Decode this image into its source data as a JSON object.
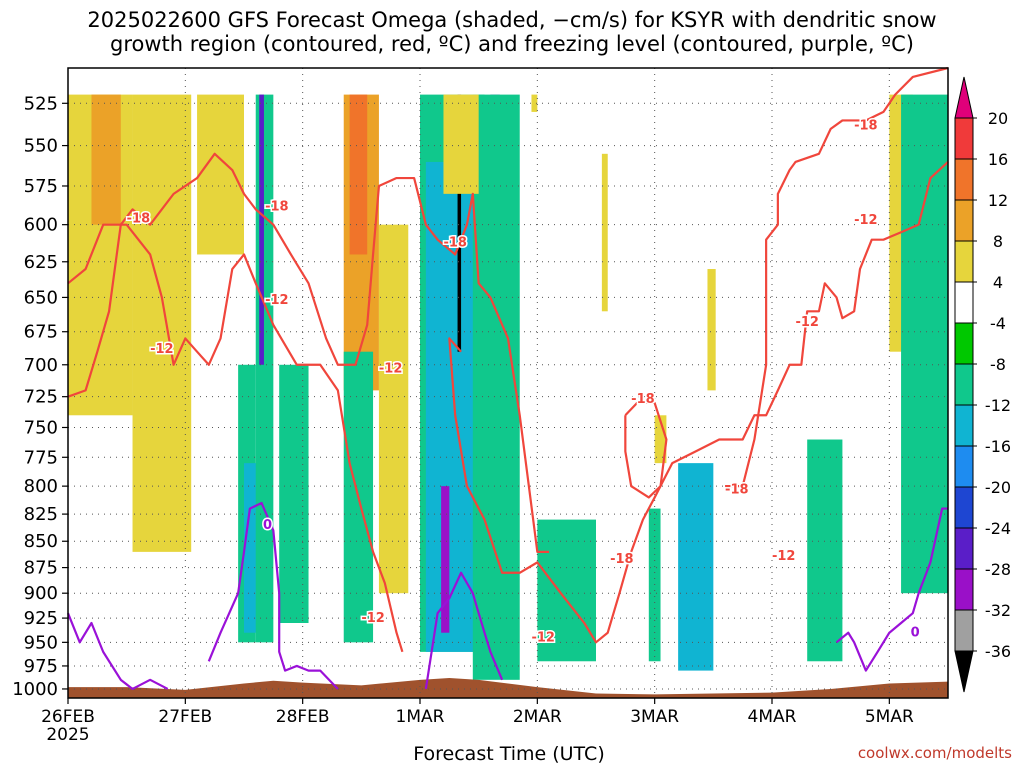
{
  "header": {
    "title_line1": "2025022600 GFS Forecast Omega (shaded, −cm/s) for KSYR with dendritic snow",
    "title_line2": "growth region (contoured, red, ºC) and freezing level (contoured, purple, ºC)"
  },
  "footer": {
    "x_axis_title": "Forecast Time (UTC)",
    "credit": "coolwx.com/modelts"
  },
  "colors": {
    "temp_contour": "#f0463c",
    "freezing_level": "#9a11d8",
    "terrain": "#a0522d",
    "grid": "#888888"
  },
  "chart_data": {
    "type": "heatmap",
    "title": "2025022600 GFS Forecast Omega (shaded, −cm/s) for KSYR with dendritic snow growth region (contoured, red, ºC) and freezing level (contoured, purple, ºC)",
    "xlabel": "Forecast Time (UTC)",
    "ylabel": "",
    "x_ticks": [
      "26FEB",
      "27FEB",
      "28FEB",
      "1MAR",
      "2MAR",
      "3MAR",
      "4MAR",
      "5MAR"
    ],
    "x_year": "2025",
    "x_range_days": [
      0,
      7.5
    ],
    "y_ticks": [
      525,
      550,
      575,
      600,
      625,
      650,
      675,
      700,
      725,
      750,
      775,
      800,
      825,
      850,
      875,
      900,
      925,
      950,
      975,
      1000
    ],
    "y_range_hpa": [
      1010,
      505
    ],
    "y_scale": "pressure",
    "grid": true,
    "colorbar": {
      "labels": [
        "20",
        "16",
        "12",
        "8",
        "4",
        "-4",
        "-8",
        "-12",
        "-16",
        "-20",
        "-24",
        "-28",
        "-32",
        "-36"
      ],
      "colors": [
        "#e0007a",
        "#f03a3a",
        "#f0742a",
        "#eba228",
        "#e6d53c",
        "#ffffff",
        "#00c800",
        "#10c88c",
        "#10b4d2",
        "#1e8cf0",
        "#1e46d2",
        "#5a1ec8",
        "#9a10c8",
        "#a0a0a0",
        "#000000"
      ]
    },
    "omega_regions": [
      {
        "value": 6,
        "x": [
          0.0,
          0.55
        ],
        "p": [
          520,
          740
        ]
      },
      {
        "value": 10,
        "x": [
          0.2,
          0.45
        ],
        "p": [
          520,
          600
        ]
      },
      {
        "value": 6,
        "x": [
          0.55,
          1.05
        ],
        "p": [
          520,
          860
        ]
      },
      {
        "value": 6,
        "x": [
          1.1,
          1.5
        ],
        "p": [
          520,
          620
        ]
      },
      {
        "value": -8,
        "x": [
          1.45,
          1.6
        ],
        "p": [
          700,
          950
        ]
      },
      {
        "value": -12,
        "x": [
          1.5,
          1.62
        ],
        "p": [
          780,
          940
        ]
      },
      {
        "value": -8,
        "x": [
          1.6,
          1.75
        ],
        "p": [
          520,
          950
        ]
      },
      {
        "value": -24,
        "x": [
          1.63,
          1.67
        ],
        "p": [
          520,
          700
        ]
      },
      {
        "value": -8,
        "x": [
          1.8,
          2.05
        ],
        "p": [
          700,
          930
        ]
      },
      {
        "value": 8,
        "x": [
          2.35,
          2.65
        ],
        "p": [
          520,
          720
        ]
      },
      {
        "value": 14,
        "x": [
          2.4,
          2.55
        ],
        "p": [
          520,
          620
        ]
      },
      {
        "value": -8,
        "x": [
          2.35,
          2.6
        ],
        "p": [
          690,
          950
        ]
      },
      {
        "value": 6,
        "x": [
          2.65,
          2.9
        ],
        "p": [
          600,
          900
        ]
      },
      {
        "value": -8,
        "x": [
          3.0,
          3.55
        ],
        "p": [
          520,
          960
        ]
      },
      {
        "value": -12,
        "x": [
          3.05,
          3.5
        ],
        "p": [
          560,
          960
        ]
      },
      {
        "value": -28,
        "x": [
          3.18,
          3.25
        ],
        "p": [
          800,
          940
        ]
      },
      {
        "value": -36,
        "x": [
          3.32,
          3.35
        ],
        "p": [
          520,
          690
        ]
      },
      {
        "value": -24,
        "x": [
          3.6,
          3.68
        ],
        "p": [
          520,
          710
        ]
      },
      {
        "value": -8,
        "x": [
          3.45,
          3.85
        ],
        "p": [
          520,
          990
        ]
      },
      {
        "value": 6,
        "x": [
          3.2,
          3.5
        ],
        "p": [
          520,
          580
        ]
      },
      {
        "value": 6,
        "x": [
          3.95,
          4.0
        ],
        "p": [
          520,
          530
        ]
      },
      {
        "value": -8,
        "x": [
          4.0,
          4.5
        ],
        "p": [
          830,
          970
        ]
      },
      {
        "value": -8,
        "x": [
          4.95,
          5.05
        ],
        "p": [
          820,
          970
        ]
      },
      {
        "value": 6,
        "x": [
          4.55,
          4.6
        ],
        "p": [
          555,
          660
        ]
      },
      {
        "value": 6,
        "x": [
          5.45,
          5.52
        ],
        "p": [
          630,
          720
        ]
      },
      {
        "value": -12,
        "x": [
          5.2,
          5.5
        ],
        "p": [
          780,
          980
        ]
      },
      {
        "value": 6,
        "x": [
          5.0,
          5.1
        ],
        "p": [
          740,
          780
        ]
      },
      {
        "value": -8,
        "x": [
          6.3,
          6.6
        ],
        "p": [
          760,
          970
        ]
      },
      {
        "value": 6,
        "x": [
          7.0,
          7.2
        ],
        "p": [
          520,
          690
        ]
      },
      {
        "value": -8,
        "x": [
          7.1,
          7.5
        ],
        "p": [
          520,
          900
        ]
      }
    ],
    "contours": [
      {
        "name": "-18",
        "color": "#f0463c",
        "points": [
          [
            0.0,
            725
          ],
          [
            0.15,
            720
          ],
          [
            0.25,
            690
          ],
          [
            0.35,
            660
          ],
          [
            0.45,
            600
          ],
          [
            0.55,
            590
          ],
          [
            0.7,
            600
          ],
          [
            0.9,
            580
          ],
          [
            1.1,
            570
          ],
          [
            1.25,
            555
          ],
          [
            1.4,
            565
          ],
          [
            1.5,
            580
          ],
          [
            1.6,
            590
          ],
          [
            1.75,
            600
          ],
          [
            1.9,
            620
          ],
          [
            2.05,
            640
          ],
          [
            2.2,
            680
          ],
          [
            2.3,
            700
          ],
          [
            2.45,
            700
          ],
          [
            2.55,
            670
          ],
          [
            2.6,
            620
          ],
          [
            2.65,
            575
          ],
          [
            2.8,
            570
          ],
          [
            2.95,
            570
          ],
          [
            3.05,
            600
          ],
          [
            3.15,
            610
          ],
          [
            3.3,
            620
          ],
          [
            3.4,
            600
          ],
          [
            3.45,
            580
          ],
          [
            3.5,
            640
          ],
          [
            3.6,
            650
          ],
          [
            3.75,
            680
          ],
          [
            3.85,
            740
          ],
          [
            4.0,
            860
          ],
          [
            4.1,
            860
          ]
        ]
      },
      {
        "name": "-18 loop",
        "color": "#f0463c",
        "points": [
          [
            4.75,
            740
          ],
          [
            4.85,
            730
          ],
          [
            5.0,
            730
          ],
          [
            5.1,
            760
          ],
          [
            5.05,
            800
          ],
          [
            4.95,
            810
          ],
          [
            4.8,
            800
          ],
          [
            4.75,
            770
          ],
          [
            4.75,
            740
          ]
        ]
      },
      {
        "name": "-18 upper",
        "color": "#f0463c",
        "points": [
          [
            5.6,
            800
          ],
          [
            5.75,
            800
          ],
          [
            5.85,
            760
          ],
          [
            5.95,
            700
          ],
          [
            5.95,
            610
          ],
          [
            6.05,
            600
          ],
          [
            6.05,
            580
          ],
          [
            6.15,
            565
          ],
          [
            6.2,
            560
          ],
          [
            6.4,
            555
          ],
          [
            6.5,
            540
          ],
          [
            6.6,
            535
          ],
          [
            6.8,
            535
          ],
          [
            6.95,
            530
          ],
          [
            7.05,
            520
          ],
          [
            7.2,
            510
          ],
          [
            7.5,
            505
          ]
        ]
      },
      {
        "name": "-12",
        "color": "#f0463c",
        "points": [
          [
            0.0,
            640
          ],
          [
            0.15,
            630
          ],
          [
            0.3,
            600
          ],
          [
            0.5,
            600
          ],
          [
            0.7,
            620
          ],
          [
            0.8,
            650
          ],
          [
            0.9,
            700
          ],
          [
            1.0,
            680
          ],
          [
            1.1,
            690
          ],
          [
            1.2,
            700
          ],
          [
            1.3,
            680
          ],
          [
            1.4,
            630
          ],
          [
            1.5,
            620
          ],
          [
            1.6,
            640
          ],
          [
            1.75,
            670
          ],
          [
            1.95,
            700
          ],
          [
            2.15,
            700
          ],
          [
            2.3,
            720
          ],
          [
            2.4,
            780
          ],
          [
            2.5,
            820
          ],
          [
            2.6,
            860
          ],
          [
            2.7,
            890
          ],
          [
            2.8,
            940
          ],
          [
            2.85,
            960
          ]
        ]
      },
      {
        "name": "-12 right",
        "color": "#f0463c",
        "points": [
          [
            3.35,
            690
          ],
          [
            3.25,
            680
          ],
          [
            3.3,
            740
          ],
          [
            3.4,
            800
          ],
          [
            3.55,
            830
          ],
          [
            3.7,
            880
          ],
          [
            3.85,
            880
          ],
          [
            4.0,
            870
          ],
          [
            4.2,
            900
          ],
          [
            4.4,
            930
          ],
          [
            4.5,
            950
          ],
          [
            4.6,
            940
          ],
          [
            4.7,
            900
          ],
          [
            4.8,
            860
          ],
          [
            4.9,
            830
          ],
          [
            5.0,
            810
          ],
          [
            5.15,
            780
          ],
          [
            5.35,
            770
          ],
          [
            5.55,
            760
          ],
          [
            5.75,
            760
          ],
          [
            5.85,
            740
          ],
          [
            5.95,
            740
          ],
          [
            6.05,
            720
          ],
          [
            6.15,
            700
          ],
          [
            6.25,
            700
          ],
          [
            6.3,
            660
          ],
          [
            6.4,
            660
          ],
          [
            6.45,
            640
          ],
          [
            6.55,
            650
          ],
          [
            6.6,
            665
          ],
          [
            6.7,
            660
          ],
          [
            6.75,
            630
          ],
          [
            6.85,
            610
          ],
          [
            6.95,
            610
          ],
          [
            7.1,
            605
          ],
          [
            7.25,
            600
          ],
          [
            7.35,
            570
          ],
          [
            7.5,
            560
          ]
        ]
      },
      {
        "name": "0",
        "color": "#9a11d8",
        "points": [
          [
            0.0,
            920
          ],
          [
            0.1,
            950
          ],
          [
            0.2,
            930
          ],
          [
            0.3,
            960
          ],
          [
            0.45,
            990
          ],
          [
            0.55,
            1000
          ],
          [
            0.7,
            990
          ],
          [
            0.85,
            1000
          ]
        ]
      },
      {
        "name": "0 mid",
        "color": "#9a11d8",
        "points": [
          [
            1.2,
            970
          ],
          [
            1.3,
            940
          ],
          [
            1.45,
            900
          ],
          [
            1.5,
            860
          ],
          [
            1.55,
            820
          ],
          [
            1.65,
            815
          ],
          [
            1.75,
            840
          ],
          [
            1.8,
            900
          ],
          [
            1.8,
            960
          ],
          [
            1.85,
            980
          ],
          [
            1.95,
            975
          ],
          [
            2.05,
            980
          ],
          [
            2.15,
            980
          ],
          [
            2.3,
            1000
          ]
        ]
      },
      {
        "name": "0 late",
        "color": "#9a11d8",
        "points": [
          [
            3.05,
            1000
          ],
          [
            3.15,
            920
          ],
          [
            3.25,
            905
          ],
          [
            3.35,
            880
          ],
          [
            3.45,
            900
          ],
          [
            3.5,
            920
          ],
          [
            3.55,
            940
          ],
          [
            3.6,
            960
          ],
          [
            3.7,
            990
          ]
        ]
      },
      {
        "name": "0 right",
        "color": "#9a11d8",
        "points": [
          [
            6.55,
            950
          ],
          [
            6.65,
            940
          ],
          [
            6.7,
            950
          ],
          [
            6.8,
            980
          ],
          [
            6.9,
            960
          ],
          [
            7.0,
            940
          ],
          [
            7.1,
            930
          ],
          [
            7.2,
            920
          ],
          [
            7.25,
            900
          ],
          [
            7.35,
            870
          ],
          [
            7.45,
            820
          ],
          [
            7.5,
            820
          ]
        ]
      }
    ],
    "contour_labels": [
      {
        "text": "-18",
        "x": 0.6,
        "p": 596
      },
      {
        "text": "-12",
        "x": 0.8,
        "p": 688
      },
      {
        "text": "-18",
        "x": 1.78,
        "p": 588
      },
      {
        "text": "-12",
        "x": 1.78,
        "p": 652
      },
      {
        "text": "-12",
        "x": 2.75,
        "p": 703
      },
      {
        "text": "-18",
        "x": 3.3,
        "p": 612
      },
      {
        "text": "-12",
        "x": 2.6,
        "p": 925
      },
      {
        "text": "-18",
        "x": 4.72,
        "p": 867
      },
      {
        "text": "-12",
        "x": 4.05,
        "p": 945
      },
      {
        "text": "-18",
        "x": 4.9,
        "p": 727
      },
      {
        "text": "-18",
        "x": 5.7,
        "p": 803
      },
      {
        "text": "-12",
        "x": 6.1,
        "p": 864
      },
      {
        "text": "-12",
        "x": 6.3,
        "p": 668
      },
      {
        "text": "-12",
        "x": 6.8,
        "p": 597
      },
      {
        "text": "-18",
        "x": 6.8,
        "p": 538
      },
      {
        "text": "0",
        "x": 1.7,
        "p": 835
      },
      {
        "text": "0",
        "x": 7.22,
        "p": 940
      }
    ],
    "terrain": {
      "color": "#a0522d",
      "profile": [
        [
          0.0,
          998
        ],
        [
          0.5,
          998
        ],
        [
          1.0,
          1001
        ],
        [
          1.5,
          994
        ],
        [
          1.75,
          991
        ],
        [
          2.0,
          993
        ],
        [
          2.5,
          996
        ],
        [
          3.0,
          990
        ],
        [
          3.25,
          988
        ],
        [
          3.5,
          990
        ],
        [
          4.0,
          998
        ],
        [
          4.5,
          1005
        ],
        [
          5.0,
          1006
        ],
        [
          5.5,
          1005
        ],
        [
          6.0,
          1004
        ],
        [
          6.5,
          1000
        ],
        [
          7.0,
          994
        ],
        [
          7.5,
          992
        ]
      ]
    }
  }
}
